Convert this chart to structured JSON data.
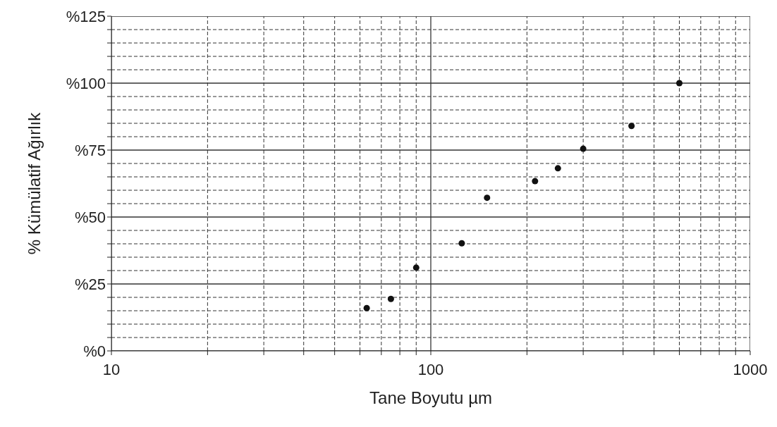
{
  "chart_data": {
    "type": "scatter",
    "xlabel": "Tane Boyutu µm",
    "ylabel": "% Kümülatif Ağırlık",
    "x": [
      63,
      75,
      90,
      125,
      150,
      212,
      250,
      300,
      425,
      600
    ],
    "series": [
      {
        "color": "#111111",
        "values": [
          16,
          19.4,
          31.1,
          40.2,
          57.2,
          63.4,
          68.2,
          75.5,
          84,
          100
        ]
      }
    ],
    "log": "x",
    "xlim": [
      10,
      1000
    ],
    "xticks": [
      10,
      {
        "value": 20,
        "label": null
      },
      {
        "value": 30,
        "label": null
      },
      {
        "value": 40,
        "label": null
      },
      {
        "value": 50,
        "label": null
      },
      {
        "value": 60,
        "label": null
      },
      {
        "value": 70,
        "label": null
      },
      {
        "value": 80,
        "label": null
      },
      {
        "value": 90,
        "label": null
      },
      100,
      {
        "value": 200,
        "label": null
      },
      {
        "value": 300,
        "label": null
      },
      {
        "value": 400,
        "label": null
      },
      {
        "value": 500,
        "label": null
      },
      {
        "value": 600,
        "label": null
      },
      {
        "value": 700,
        "label": null
      },
      {
        "value": 800,
        "label": null
      },
      {
        "value": 900,
        "label": null
      },
      1000
    ],
    "ylim": [
      0,
      125
    ],
    "yticks": [
      {
        "value": 0,
        "label": "%0"
      },
      {
        "value": 5,
        "label": null
      },
      {
        "value": 10,
        "label": null
      },
      {
        "value": 15,
        "label": null
      },
      {
        "value": 20,
        "label": null
      },
      {
        "value": 25,
        "label": "%25"
      },
      {
        "value": 30,
        "label": null
      },
      {
        "value": 35,
        "label": null
      },
      {
        "value": 40,
        "label": null
      },
      {
        "value": 45,
        "label": null
      },
      {
        "value": 50,
        "label": "%50"
      },
      {
        "value": 55,
        "label": null
      },
      {
        "value": 60,
        "label": null
      },
      {
        "value": 65,
        "label": null
      },
      {
        "value": 70,
        "label": null
      },
      {
        "value": 75,
        "label": "%75"
      },
      {
        "value": 80,
        "label": null
      },
      {
        "value": 85,
        "label": null
      },
      {
        "value": 90,
        "label": null
      },
      {
        "value": 95,
        "label": null
      },
      {
        "value": 100,
        "label": "%100"
      },
      {
        "value": 105,
        "label": null
      },
      {
        "value": 110,
        "label": null
      },
      {
        "value": 115,
        "label": null
      },
      {
        "value": 120,
        "label": null
      },
      {
        "value": 125,
        "label": "%125"
      }
    ],
    "grid": true,
    "marker": "circle"
  }
}
